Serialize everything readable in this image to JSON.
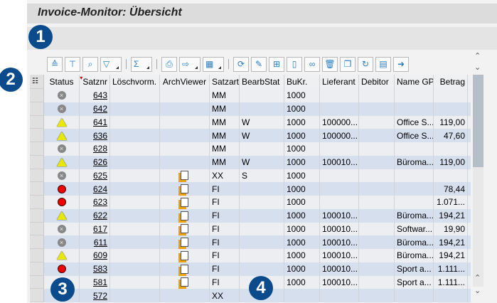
{
  "title": "Invoice-Monitor: Übersicht",
  "badges": [
    "1",
    "2",
    "3",
    "4"
  ],
  "toolbar": [
    "align-icon",
    "filter-icon",
    "find-icon",
    "set-filter-icon",
    "sum-icon",
    "print-icon",
    "export-icon",
    "layout-icon",
    "status-change-icon",
    "edit-icon",
    "structure-icon",
    "new-document-icon",
    "display-icon",
    "delete-icon",
    "copy-icon",
    "refresh-icon",
    "calendar-icon",
    "forward-icon"
  ],
  "columns": [
    "Status",
    "Satznr",
    "Löschvorm.",
    "ArchViewer",
    "Satzart",
    "BearbStat",
    "BuKr.",
    "Lieferant",
    "Debitor",
    "Name GP",
    "Betrag"
  ],
  "sort_column": "Satznr",
  "rows": [
    {
      "status": "inactive",
      "nr": "643",
      "arch": false,
      "satzart": "MM",
      "bearb": "",
      "bukr": "1000",
      "lief": "",
      "deb": "",
      "name": "",
      "betrag": ""
    },
    {
      "status": "inactive",
      "nr": "642",
      "arch": false,
      "satzart": "MM",
      "bearb": "",
      "bukr": "1000",
      "lief": "",
      "deb": "",
      "name": "",
      "betrag": ""
    },
    {
      "status": "warning",
      "nr": "641",
      "arch": false,
      "satzart": "MM",
      "bearb": "W",
      "bukr": "1000",
      "lief": "100000...",
      "deb": "",
      "name": "Office S...",
      "betrag": "119,00"
    },
    {
      "status": "warning",
      "nr": "636",
      "arch": false,
      "satzart": "MM",
      "bearb": "W",
      "bukr": "1000",
      "lief": "100000...",
      "deb": "",
      "name": "Office S...",
      "betrag": "47,60"
    },
    {
      "status": "inactive",
      "nr": "628",
      "arch": false,
      "satzart": "MM",
      "bearb": "",
      "bukr": "1000",
      "lief": "",
      "deb": "",
      "name": "",
      "betrag": ""
    },
    {
      "status": "warning",
      "nr": "626",
      "arch": false,
      "satzart": "MM",
      "bearb": "W",
      "bukr": "1000",
      "lief": "100010...",
      "deb": "",
      "name": "Büroma...",
      "betrag": "119,00"
    },
    {
      "status": "inactive",
      "nr": "625",
      "arch": true,
      "satzart": "XX",
      "bearb": "S",
      "bukr": "1000",
      "lief": "",
      "deb": "",
      "name": "",
      "betrag": ""
    },
    {
      "status": "error",
      "nr": "624",
      "arch": true,
      "satzart": "FI",
      "bearb": "",
      "bukr": "1000",
      "lief": "",
      "deb": "",
      "name": "",
      "betrag": "78,44"
    },
    {
      "status": "error",
      "nr": "623",
      "arch": true,
      "satzart": "FI",
      "bearb": "",
      "bukr": "1000",
      "lief": "",
      "deb": "",
      "name": "",
      "betrag": "1.071..."
    },
    {
      "status": "warning",
      "nr": "622",
      "arch": true,
      "satzart": "FI",
      "bearb": "",
      "bukr": "1000",
      "lief": "100010...",
      "deb": "",
      "name": "Büroma...",
      "betrag": "194,21"
    },
    {
      "status": "inactive",
      "nr": "617",
      "arch": true,
      "satzart": "FI",
      "bearb": "",
      "bukr": "1000",
      "lief": "100010...",
      "deb": "",
      "name": "Softwar...",
      "betrag": "19,90"
    },
    {
      "status": "inactive",
      "nr": "611",
      "arch": true,
      "satzart": "FI",
      "bearb": "",
      "bukr": "1000",
      "lief": "100010...",
      "deb": "",
      "name": "Büroma...",
      "betrag": "194,21"
    },
    {
      "status": "warning",
      "nr": "609",
      "arch": true,
      "satzart": "FI",
      "bearb": "",
      "bukr": "1000",
      "lief": "100010...",
      "deb": "",
      "name": "Büroma...",
      "betrag": "194,21"
    },
    {
      "status": "error",
      "nr": "583",
      "arch": true,
      "satzart": "FI",
      "bearb": "",
      "bukr": "1000",
      "lief": "100010...",
      "deb": "",
      "name": "Sport a...",
      "betrag": "1.111..."
    },
    {
      "status": "",
      "nr": "581",
      "arch": true,
      "satzart": "FI",
      "bearb": "",
      "bukr": "1000",
      "lief": "100010...",
      "deb": "",
      "name": "Sport a...",
      "betrag": "1.111..."
    },
    {
      "status": "",
      "nr": "572",
      "arch": false,
      "satzart": "XX",
      "bearb": "",
      "bukr": "",
      "lief": "",
      "deb": "",
      "name": "",
      "betrag": ""
    }
  ]
}
